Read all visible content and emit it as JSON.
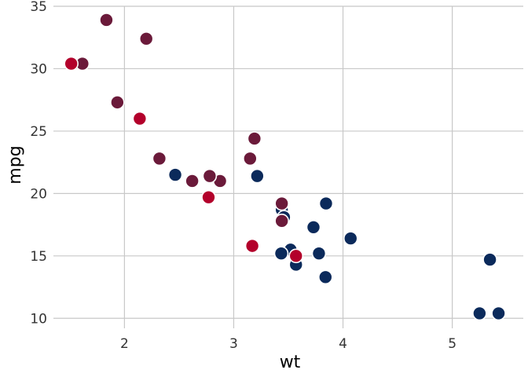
{
  "chart_data": {
    "type": "scatter",
    "xlabel": "wt",
    "ylabel": "mpg",
    "xlim": [
      1.35,
      5.65
    ],
    "ylim": [
      9.2,
      35.0
    ],
    "x_ticks": [
      2,
      3,
      4,
      5
    ],
    "y_ticks": [
      10,
      15,
      20,
      25,
      30,
      35
    ],
    "x_tick_labels": [
      "2",
      "3",
      "4",
      "5"
    ],
    "y_tick_labels": [
      "10",
      "15",
      "20",
      "25",
      "30",
      "35"
    ],
    "grid": true,
    "legend": "none",
    "colors": {
      "navy": "#0b2a5b",
      "plum": "#6b1a3a",
      "crimson": "#b3002b"
    },
    "points": [
      {
        "x": 2.62,
        "y": 21.0,
        "color": "plum"
      },
      {
        "x": 2.875,
        "y": 21.0,
        "color": "plum"
      },
      {
        "x": 2.32,
        "y": 22.8,
        "color": "plum"
      },
      {
        "x": 3.215,
        "y": 21.4,
        "color": "navy"
      },
      {
        "x": 3.44,
        "y": 18.7,
        "color": "navy"
      },
      {
        "x": 3.46,
        "y": 18.1,
        "color": "navy"
      },
      {
        "x": 3.57,
        "y": 14.3,
        "color": "navy"
      },
      {
        "x": 3.19,
        "y": 24.4,
        "color": "plum"
      },
      {
        "x": 3.15,
        "y": 22.8,
        "color": "plum"
      },
      {
        "x": 3.44,
        "y": 19.2,
        "color": "plum"
      },
      {
        "x": 3.44,
        "y": 17.8,
        "color": "plum"
      },
      {
        "x": 4.07,
        "y": 16.4,
        "color": "navy"
      },
      {
        "x": 3.73,
        "y": 17.3,
        "color": "navy"
      },
      {
        "x": 3.78,
        "y": 15.2,
        "color": "navy"
      },
      {
        "x": 5.25,
        "y": 10.4,
        "color": "navy"
      },
      {
        "x": 5.424,
        "y": 10.4,
        "color": "navy"
      },
      {
        "x": 5.345,
        "y": 14.7,
        "color": "navy"
      },
      {
        "x": 2.2,
        "y": 32.4,
        "color": "plum"
      },
      {
        "x": 1.615,
        "y": 30.4,
        "color": "plum"
      },
      {
        "x": 1.835,
        "y": 33.9,
        "color": "plum"
      },
      {
        "x": 2.465,
        "y": 21.5,
        "color": "navy"
      },
      {
        "x": 3.52,
        "y": 15.5,
        "color": "navy"
      },
      {
        "x": 3.435,
        "y": 15.2,
        "color": "navy"
      },
      {
        "x": 3.84,
        "y": 13.3,
        "color": "navy"
      },
      {
        "x": 3.845,
        "y": 19.2,
        "color": "navy"
      },
      {
        "x": 1.935,
        "y": 27.3,
        "color": "plum"
      },
      {
        "x": 2.14,
        "y": 26.0,
        "color": "crimson"
      },
      {
        "x": 1.513,
        "y": 30.4,
        "color": "crimson"
      },
      {
        "x": 3.17,
        "y": 15.8,
        "color": "crimson"
      },
      {
        "x": 2.77,
        "y": 19.7,
        "color": "crimson"
      },
      {
        "x": 3.57,
        "y": 15.0,
        "color": "crimson"
      },
      {
        "x": 2.78,
        "y": 21.4,
        "color": "plum"
      }
    ]
  }
}
